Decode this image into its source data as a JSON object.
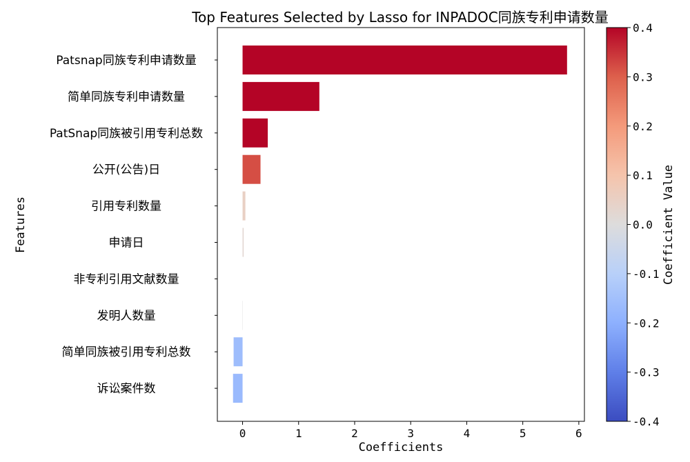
{
  "chart_data": {
    "type": "bar",
    "orientation": "horizontal",
    "title": "Top Features Selected by Lasso for INPADOC同族专利申请数量",
    "xlabel": "Coefficients",
    "ylabel": "Features",
    "xlim": [
      -0.45,
      6.1
    ],
    "xticks": [
      0,
      1,
      2,
      3,
      4,
      5,
      6
    ],
    "grid": false,
    "categories": [
      "Patsnap同族专利申请数量",
      "简单同族专利申请数量",
      "PatSnap同族被引用专利总数",
      "公开(公告)日",
      "引用专利数量",
      "申请日",
      "非专利引用文献数量",
      "发明人数量",
      "简单同族被引用专利总数",
      "诉讼案件数"
    ],
    "values": [
      5.79,
      1.37,
      0.45,
      0.32,
      0.05,
      0.02,
      0.0,
      -0.005,
      -0.16,
      -0.17
    ],
    "colorbar": {
      "label": "Coefficient Value",
      "colormap": "coolwarm",
      "range": [
        -0.4,
        0.4
      ],
      "ticks": [
        "-0.4",
        "-0.3",
        "-0.2",
        "-0.1",
        "0.0",
        "0.1",
        "0.2",
        "0.3",
        "0.4"
      ]
    }
  }
}
